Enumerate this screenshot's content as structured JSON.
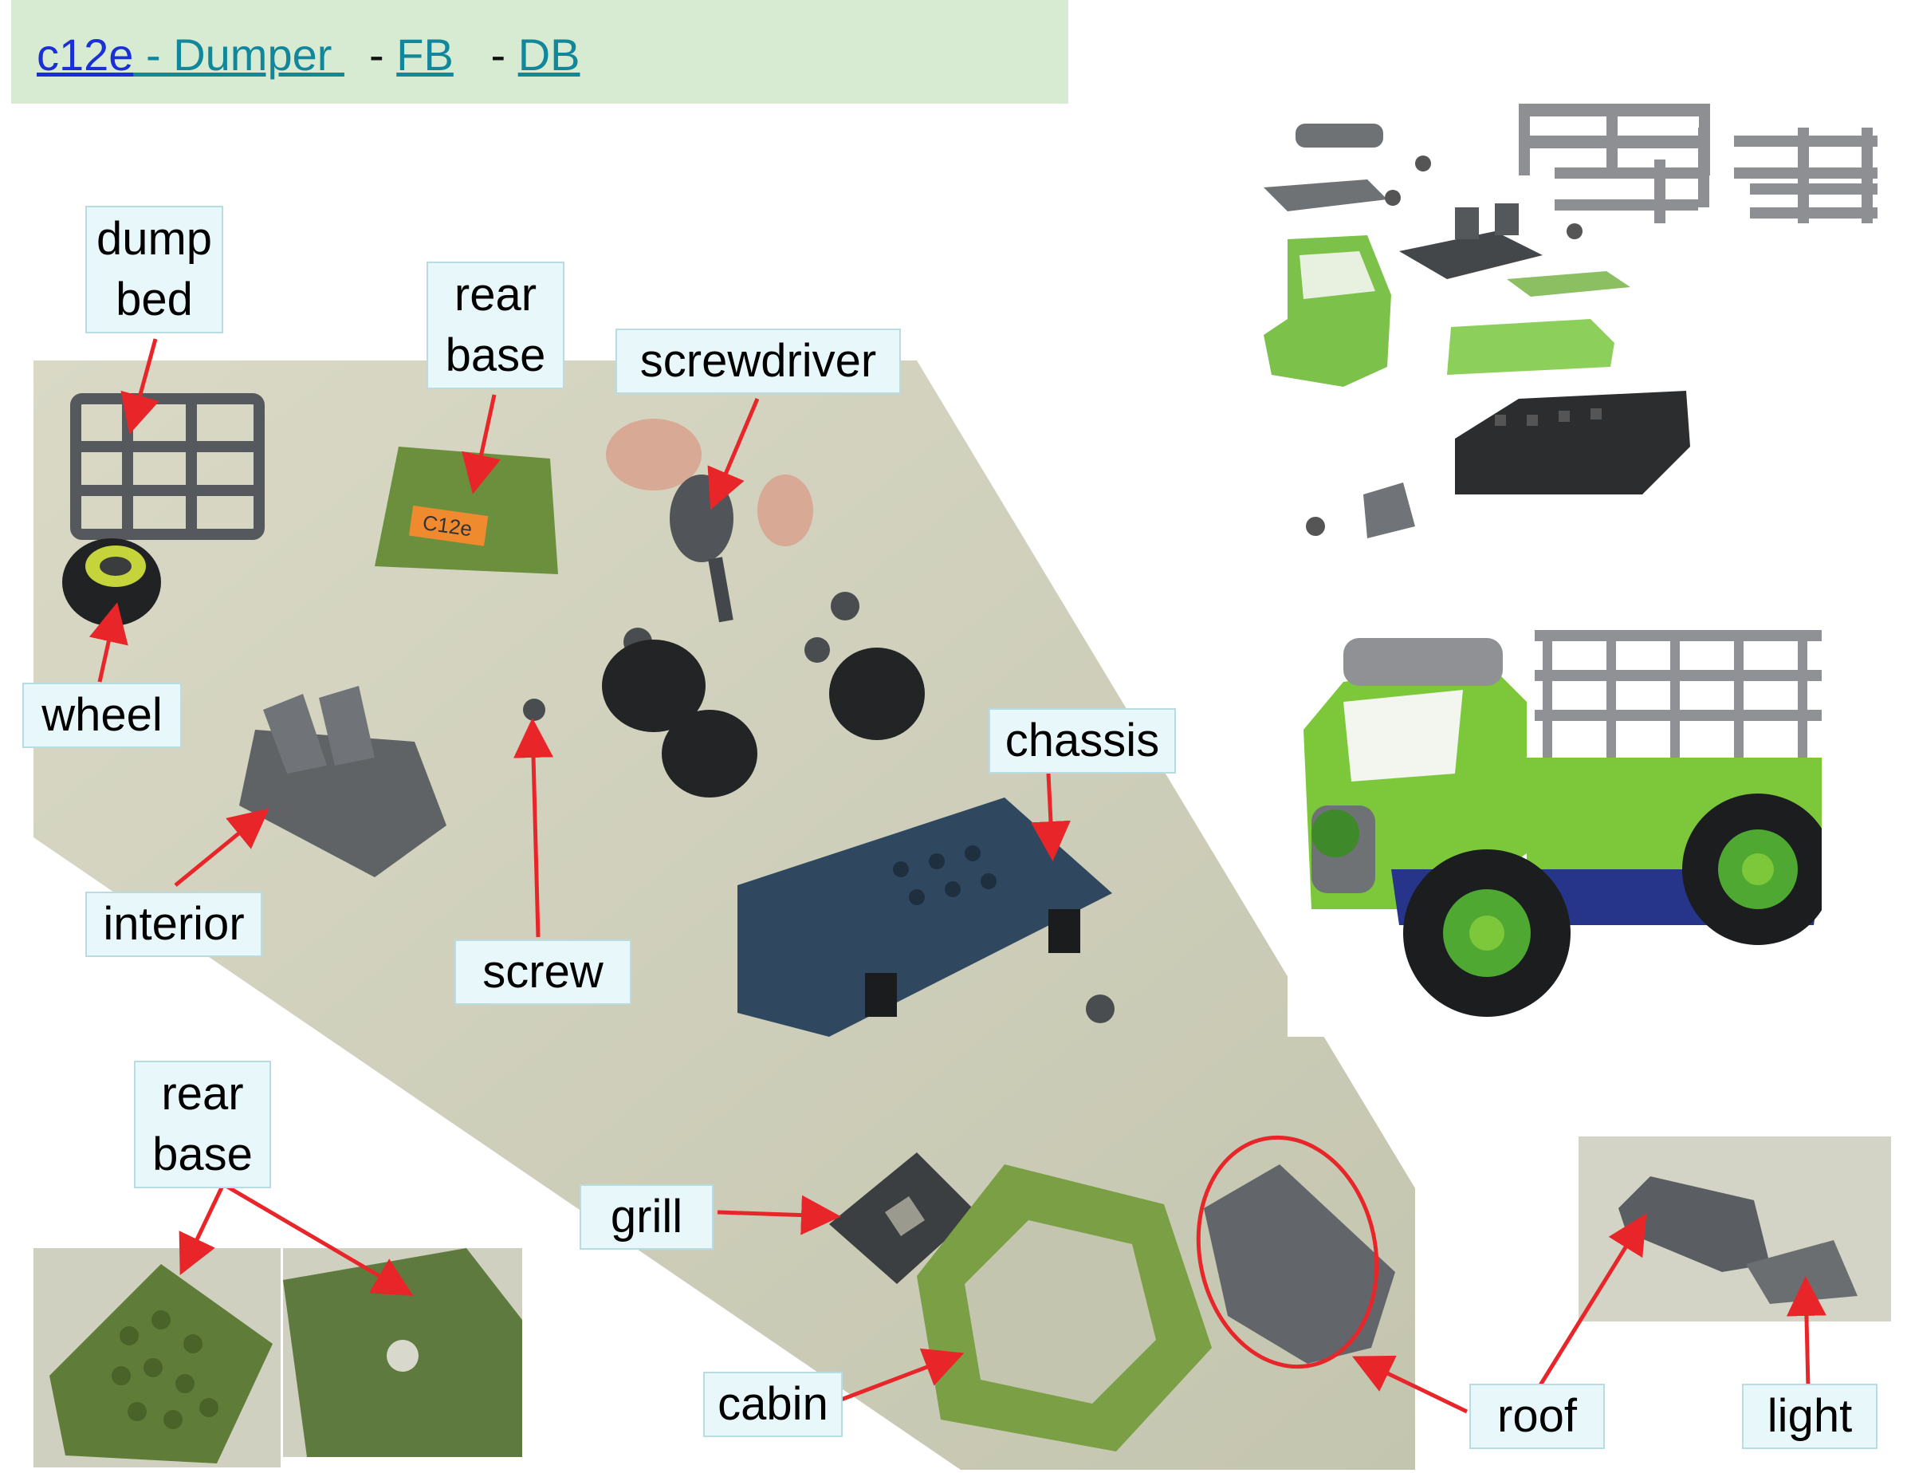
{
  "header": {
    "code_link": "c12e",
    "title_link": " - Dumper ",
    "sep1": "  - ",
    "fb_link": "FB",
    "sep2": "   - ",
    "db_link": "DB"
  },
  "labels": {
    "dump_bed": [
      "dump",
      "bed"
    ],
    "rear_base_top": [
      "rear",
      "base"
    ],
    "screwdriver": "screwdriver",
    "wheel": "wheel",
    "chassis": "chassis",
    "interior": "interior",
    "screw": "screw",
    "rear_base_bottom": [
      "rear",
      "base"
    ],
    "grill": "grill",
    "cabin": "cabin",
    "roof": "roof",
    "light": "light"
  },
  "colors": {
    "arrow": "#e8262a",
    "label_bg": "#e8f7fa",
    "header_bg": "#d6ebd1",
    "part_green": "#6e9a3c",
    "part_gray": "#5f6366",
    "chassis_blue": "#2f4860",
    "toy_green": "#7cc83a"
  },
  "tag": "C12e"
}
